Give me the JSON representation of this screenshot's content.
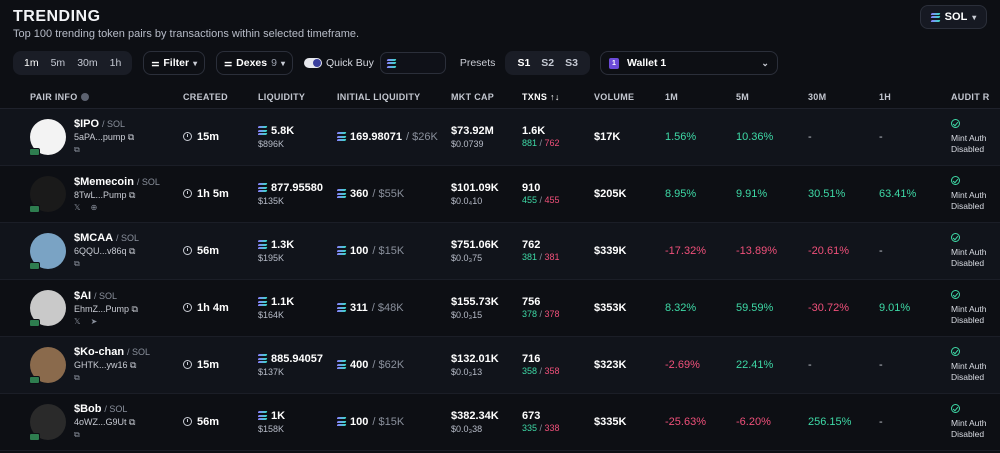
{
  "header": {
    "title": "TRENDING",
    "subtitle": "Top 100 trending token pairs by transactions within selected timeframe.",
    "chain": "SOL"
  },
  "toolbar": {
    "timeframes": [
      "1m",
      "5m",
      "30m",
      "1h"
    ],
    "active_timeframe": "1m",
    "filter_label": "Filter",
    "dexes_label": "Dexes",
    "dexes_count": "9",
    "quick_buy_label": "Quick Buy",
    "presets_label": "Presets",
    "presets": [
      "S1",
      "S2",
      "S3"
    ],
    "active_preset": "S1",
    "wallet_icon_text": "1",
    "wallet_label": "Wallet 1"
  },
  "table": {
    "columns": {
      "pair_info": "PAIR INFO",
      "created": "CREATED",
      "liquidity": "LIQUIDITY",
      "initial_liquidity": "INITIAL LIQUIDITY",
      "mkt_cap": "MKT CAP",
      "txns": "TXNS",
      "txns_sort": "↑↓",
      "volume": "VOLUME",
      "m1": "1M",
      "m5": "5M",
      "m30": "30M",
      "h1": "1H",
      "audit": "AUDIT R"
    },
    "rows": [
      {
        "symbol": "$IPO",
        "chain": "/ SOL",
        "address": "5aPA...pump",
        "links": "⧉",
        "created": "15m",
        "liquidity": "5.8K",
        "liquidity_usd": "$896K",
        "init_liq": "169.98071",
        "init_liq_usd": "/ $26K",
        "mkt_cap": "$73.92M",
        "price": "$0.0739",
        "txns": "1.6K",
        "buys": "881",
        "sells": "762",
        "volume": "$17K",
        "m1": "1.56%",
        "m1_dir": "pos",
        "m5": "10.36%",
        "m5_dir": "pos",
        "m30": "-",
        "m30_dir": "dash",
        "h1": "-",
        "h1_dir": "dash",
        "audit_line1": "Mint Auth",
        "audit_line2": "Disabled",
        "avatar_color": "#f3f3f3"
      },
      {
        "symbol": "$Memecoin",
        "chain": "/ SOL",
        "address": "8TwL...Pump",
        "links": "𝕏 ⊕",
        "created": "1h 5m",
        "liquidity": "877.95580",
        "liquidity_usd": "$135K",
        "init_liq": "360",
        "init_liq_usd": "/ $55K",
        "mkt_cap": "$101.09K",
        "price": "$0.0₄10",
        "txns": "910",
        "buys": "455",
        "sells": "455",
        "volume": "$205K",
        "m1": "8.95%",
        "m1_dir": "pos",
        "m5": "9.91%",
        "m5_dir": "pos",
        "m30": "30.51%",
        "m30_dir": "pos",
        "h1": "63.41%",
        "h1_dir": "pos",
        "audit_line1": "Mint Auth",
        "audit_line2": "Disabled",
        "avatar_color": "#1a1a1a"
      },
      {
        "symbol": "$MCAA",
        "chain": "/ SOL",
        "address": "6QQU...v86q",
        "links": "⧉",
        "created": "56m",
        "liquidity": "1.3K",
        "liquidity_usd": "$195K",
        "init_liq": "100",
        "init_liq_usd": "/ $15K",
        "mkt_cap": "$751.06K",
        "price": "$0.0₃75",
        "txns": "762",
        "buys": "381",
        "sells": "381",
        "volume": "$339K",
        "m1": "-17.32%",
        "m1_dir": "neg",
        "m5": "-13.89%",
        "m5_dir": "neg",
        "m30": "-20.61%",
        "m30_dir": "neg",
        "h1": "-",
        "h1_dir": "dash",
        "audit_line1": "Mint Auth",
        "audit_line2": "Disabled",
        "avatar_color": "#7aa3c4"
      },
      {
        "symbol": "$AI",
        "chain": "/ SOL",
        "address": "EhmZ...Pump",
        "links": "𝕏 ➤",
        "created": "1h 4m",
        "liquidity": "1.1K",
        "liquidity_usd": "$164K",
        "init_liq": "311",
        "init_liq_usd": "/ $48K",
        "mkt_cap": "$155.73K",
        "price": "$0.0₃15",
        "txns": "756",
        "buys": "378",
        "sells": "378",
        "volume": "$353K",
        "m1": "8.32%",
        "m1_dir": "pos",
        "m5": "59.59%",
        "m5_dir": "pos",
        "m30": "-30.72%",
        "m30_dir": "neg",
        "h1": "9.01%",
        "h1_dir": "pos",
        "audit_line1": "Mint Auth",
        "audit_line2": "Disabled",
        "avatar_color": "#c9c9c9"
      },
      {
        "symbol": "$Ko-chan",
        "chain": "/ SOL",
        "address": "GHTK...yw16",
        "links": "⧉",
        "created": "15m",
        "liquidity": "885.94057",
        "liquidity_usd": "$137K",
        "init_liq": "400",
        "init_liq_usd": "/ $62K",
        "mkt_cap": "$132.01K",
        "price": "$0.0₃13",
        "txns": "716",
        "buys": "358",
        "sells": "358",
        "volume": "$323K",
        "m1": "-2.69%",
        "m1_dir": "neg",
        "m5": "22.41%",
        "m5_dir": "pos",
        "m30": "-",
        "m30_dir": "dash",
        "h1": "-",
        "h1_dir": "dash",
        "audit_line1": "Mint Auth",
        "audit_line2": "Disabled",
        "avatar_color": "#8a6a4c"
      },
      {
        "symbol": "$Bob",
        "chain": "/ SOL",
        "address": "4oWZ...G9Ut",
        "links": "⧉",
        "created": "56m",
        "liquidity": "1K",
        "liquidity_usd": "$158K",
        "init_liq": "100",
        "init_liq_usd": "/ $15K",
        "mkt_cap": "$382.34K",
        "price": "$0.0₃38",
        "txns": "673",
        "buys": "335",
        "sells": "338",
        "volume": "$335K",
        "m1": "-25.63%",
        "m1_dir": "neg",
        "m5": "-6.20%",
        "m5_dir": "neg",
        "m30": "256.15%",
        "m30_dir": "pos",
        "h1": "-",
        "h1_dir": "dash",
        "audit_line1": "Mint Auth",
        "audit_line2": "Disabled",
        "avatar_color": "#2a2a2a"
      }
    ]
  },
  "colors": {
    "positive": "#3ed9a6",
    "negative": "#f0507a",
    "background": "#0d0f14",
    "row_alt": "#11141b"
  }
}
